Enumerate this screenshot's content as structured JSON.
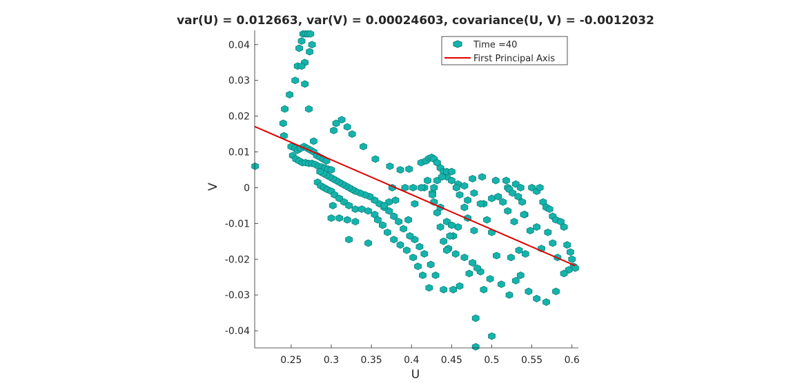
{
  "chart_data": {
    "type": "scatter",
    "title": "var(U) = 0.012663, var(V) = 0.00024603, covariance(U, V) = -0.0012032",
    "xlabel": "U",
    "ylabel": "V",
    "xlim": [
      0.2045,
      0.608
    ],
    "ylim": [
      -0.0448,
      0.044
    ],
    "xticks": [
      "0.25",
      "0.3",
      "0.35",
      "0.4",
      "0.45",
      "0.5",
      "0.55",
      "0.6"
    ],
    "yticks": [
      "0.04",
      "0.03",
      "0.02",
      "0.01",
      "0",
      "-0.01",
      "-0.02",
      "-0.03",
      "-0.04"
    ],
    "grid": false,
    "legend_position": "top-right",
    "colors": {
      "marker_fill": "#14b4ac",
      "marker_edge": "#0d7f7a",
      "line": "#e00000"
    },
    "series": [
      {
        "name": "Time =40",
        "kind": "scatter",
        "points": [
          [
            0.205,
            0.006
          ],
          [
            0.24,
            0.018
          ],
          [
            0.242,
            0.022
          ],
          [
            0.248,
            0.026
          ],
          [
            0.255,
            0.03
          ],
          [
            0.258,
            0.034
          ],
          [
            0.26,
            0.039
          ],
          [
            0.263,
            0.041
          ],
          [
            0.265,
            0.043
          ],
          [
            0.268,
            0.043
          ],
          [
            0.271,
            0.043
          ],
          [
            0.274,
            0.043
          ],
          [
            0.276,
            0.04
          ],
          [
            0.273,
            0.038
          ],
          [
            0.267,
            0.035
          ],
          [
            0.263,
            0.034
          ],
          [
            0.267,
            0.029
          ],
          [
            0.272,
            0.022
          ],
          [
            0.241,
            0.0145
          ],
          [
            0.278,
            0.013
          ],
          [
            0.25,
            0.0115
          ],
          [
            0.255,
            0.011
          ],
          [
            0.258,
            0.0105
          ],
          [
            0.262,
            0.011
          ],
          [
            0.266,
            0.0115
          ],
          [
            0.27,
            0.011
          ],
          [
            0.274,
            0.0105
          ],
          [
            0.278,
            0.01
          ],
          [
            0.282,
            0.009
          ],
          [
            0.286,
            0.0085
          ],
          [
            0.29,
            0.008
          ],
          [
            0.294,
            0.0075
          ],
          [
            0.252,
            0.009
          ],
          [
            0.256,
            0.008
          ],
          [
            0.26,
            0.0075
          ],
          [
            0.264,
            0.007
          ],
          [
            0.268,
            0.007
          ],
          [
            0.272,
            0.0068
          ],
          [
            0.276,
            0.0068
          ],
          [
            0.28,
            0.0065
          ],
          [
            0.284,
            0.006
          ],
          [
            0.288,
            0.0058
          ],
          [
            0.292,
            0.0055
          ],
          [
            0.296,
            0.0052
          ],
          [
            0.3,
            0.005
          ],
          [
            0.303,
            0.016
          ],
          [
            0.306,
            0.018
          ],
          [
            0.313,
            0.019
          ],
          [
            0.32,
            0.017
          ],
          [
            0.326,
            0.015
          ],
          [
            0.34,
            0.0115
          ],
          [
            0.355,
            0.008
          ],
          [
            0.373,
            0.006
          ],
          [
            0.386,
            0.005
          ],
          [
            0.397,
            0.0052
          ],
          [
            0.412,
            0.007
          ],
          [
            0.418,
            0.0075
          ],
          [
            0.422,
            0.0082
          ],
          [
            0.425,
            0.0085
          ],
          [
            0.428,
            0.008
          ],
          [
            0.432,
            0.007
          ],
          [
            0.436,
            0.0055
          ],
          [
            0.44,
            0.0045
          ],
          [
            0.444,
            0.003
          ],
          [
            0.45,
            0.002
          ],
          [
            0.458,
            0.001
          ],
          [
            0.466,
            0.0005
          ],
          [
            0.476,
            0.0025
          ],
          [
            0.488,
            0.003
          ],
          [
            0.505,
            0.002
          ],
          [
            0.518,
            0.002
          ],
          [
            0.52,
            0.0
          ],
          [
            0.522,
            -0.0005
          ],
          [
            0.526,
            -0.0015
          ],
          [
            0.53,
            0.001
          ],
          [
            0.533,
            -0.0025
          ],
          [
            0.536,
            0.0
          ],
          [
            0.538,
            -0.004
          ],
          [
            0.541,
            -0.0075
          ],
          [
            0.55,
            0.0
          ],
          [
            0.556,
            -0.001
          ],
          [
            0.56,
            0.0
          ],
          [
            0.564,
            -0.004
          ],
          [
            0.568,
            -0.0055
          ],
          [
            0.572,
            -0.006
          ],
          [
            0.576,
            -0.008
          ],
          [
            0.58,
            -0.009
          ],
          [
            0.586,
            -0.0095
          ],
          [
            0.59,
            -0.011
          ],
          [
            0.594,
            -0.016
          ],
          [
            0.598,
            -0.018
          ],
          [
            0.6,
            -0.02
          ],
          [
            0.602,
            -0.022
          ],
          [
            0.604,
            -0.0225
          ],
          [
            0.596,
            -0.023
          ],
          [
            0.59,
            -0.024
          ],
          [
            0.58,
            -0.029
          ],
          [
            0.568,
            -0.032
          ],
          [
            0.556,
            -0.031
          ],
          [
            0.546,
            -0.029
          ],
          [
            0.536,
            -0.0245
          ],
          [
            0.53,
            -0.026
          ],
          [
            0.522,
            -0.03
          ],
          [
            0.512,
            -0.027
          ],
          [
            0.498,
            -0.0255
          ],
          [
            0.486,
            -0.0235
          ],
          [
            0.476,
            -0.021
          ],
          [
            0.466,
            -0.0195
          ],
          [
            0.455,
            -0.0185
          ],
          [
            0.446,
            -0.017
          ],
          [
            0.44,
            -0.015
          ],
          [
            0.436,
            -0.011
          ],
          [
            0.432,
            -0.007
          ],
          [
            0.428,
            -0.004
          ],
          [
            0.426,
            -0.0015
          ],
          [
            0.428,
            0.0
          ],
          [
            0.432,
            0.002
          ],
          [
            0.438,
            0.003
          ],
          [
            0.444,
            0.0045
          ],
          [
            0.45,
            0.0045
          ],
          [
            0.456,
            0.0
          ],
          [
            0.46,
            -0.002
          ],
          [
            0.47,
            -0.0085
          ],
          [
            0.478,
            -0.012
          ],
          [
            0.49,
            -0.0045
          ],
          [
            0.5,
            -0.003
          ],
          [
            0.508,
            -0.0025
          ],
          [
            0.514,
            -0.004
          ],
          [
            0.52,
            -0.0065
          ],
          [
            0.528,
            -0.0095
          ],
          [
            0.54,
            -0.0075
          ],
          [
            0.548,
            -0.012
          ],
          [
            0.556,
            -0.011
          ],
          [
            0.562,
            -0.017
          ],
          [
            0.57,
            -0.0125
          ],
          [
            0.576,
            -0.0155
          ],
          [
            0.582,
            -0.0195
          ],
          [
            0.542,
            -0.0185
          ],
          [
            0.534,
            -0.0175
          ],
          [
            0.524,
            -0.0195
          ],
          [
            0.506,
            -0.019
          ],
          [
            0.5,
            -0.0125
          ],
          [
            0.494,
            -0.009
          ],
          [
            0.486,
            -0.0045
          ],
          [
            0.478,
            -0.0015
          ],
          [
            0.47,
            -0.0035
          ],
          [
            0.466,
            -0.0055
          ],
          [
            0.458,
            -0.011
          ],
          [
            0.452,
            -0.0135
          ],
          [
            0.448,
            -0.0135
          ],
          [
            0.444,
            -0.0175
          ],
          [
            0.44,
            -0.0285
          ],
          [
            0.452,
            -0.0285
          ],
          [
            0.46,
            -0.0275
          ],
          [
            0.472,
            -0.024
          ],
          [
            0.482,
            -0.0225
          ],
          [
            0.49,
            -0.0285
          ],
          [
            0.48,
            -0.0365
          ],
          [
            0.48,
            -0.0445
          ],
          [
            0.5,
            -0.0415
          ],
          [
            0.43,
            -0.0245
          ],
          [
            0.424,
            -0.0215
          ],
          [
            0.416,
            -0.0185
          ],
          [
            0.41,
            -0.0165
          ],
          [
            0.404,
            -0.0145
          ],
          [
            0.398,
            -0.0135
          ],
          [
            0.39,
            -0.0115
          ],
          [
            0.384,
            -0.0095
          ],
          [
            0.378,
            -0.008
          ],
          [
            0.372,
            -0.0065
          ],
          [
            0.366,
            -0.0055
          ],
          [
            0.36,
            -0.0045
          ],
          [
            0.354,
            -0.0035
          ],
          [
            0.348,
            -0.0025
          ],
          [
            0.342,
            -0.002
          ],
          [
            0.336,
            -0.0015
          ],
          [
            0.33,
            -0.001
          ],
          [
            0.326,
            -0.0005
          ],
          [
            0.322,
            0.0
          ],
          [
            0.318,
            0.0005
          ],
          [
            0.314,
            0.001
          ],
          [
            0.31,
            0.0015
          ],
          [
            0.306,
            0.002
          ],
          [
            0.302,
            0.0025
          ],
          [
            0.298,
            0.003
          ],
          [
            0.294,
            0.0035
          ],
          [
            0.29,
            0.004
          ],
          [
            0.286,
            0.0045
          ],
          [
            0.283,
            0.0015
          ],
          [
            0.287,
            0.0005
          ],
          [
            0.291,
            0.0
          ],
          [
            0.295,
            -0.0005
          ],
          [
            0.3,
            -0.001
          ],
          [
            0.304,
            -0.002
          ],
          [
            0.31,
            -0.003
          ],
          [
            0.316,
            -0.004
          ],
          [
            0.322,
            -0.005
          ],
          [
            0.33,
            -0.006
          ],
          [
            0.338,
            -0.006
          ],
          [
            0.346,
            -0.0065
          ],
          [
            0.354,
            -0.0075
          ],
          [
            0.358,
            -0.009
          ],
          [
            0.364,
            -0.0105
          ],
          [
            0.37,
            -0.0125
          ],
          [
            0.378,
            -0.0145
          ],
          [
            0.386,
            -0.016
          ],
          [
            0.394,
            -0.0175
          ],
          [
            0.402,
            -0.0195
          ],
          [
            0.408,
            -0.022
          ],
          [
            0.414,
            -0.0245
          ],
          [
            0.422,
            -0.028
          ],
          [
            0.302,
            -0.005
          ],
          [
            0.31,
            -0.0085
          ],
          [
            0.32,
            -0.009
          ],
          [
            0.33,
            -0.0095
          ],
          [
            0.346,
            -0.0155
          ],
          [
            0.322,
            -0.0145
          ],
          [
            0.3,
            -0.0085
          ],
          [
            0.38,
            -0.0035
          ],
          [
            0.372,
            -0.004
          ],
          [
            0.366,
            -0.005
          ],
          [
            0.376,
            0.0
          ],
          [
            0.392,
            0.0
          ],
          [
            0.402,
            0.0
          ],
          [
            0.416,
            0.0
          ],
          [
            0.426,
            -0.002
          ],
          [
            0.436,
            -0.0055
          ],
          [
            0.444,
            -0.0095
          ],
          [
            0.45,
            -0.0105
          ],
          [
            0.396,
            -0.009
          ],
          [
            0.404,
            -0.0045
          ],
          [
            0.412,
            0.0
          ],
          [
            0.42,
            0.002
          ]
        ]
      },
      {
        "name": "First Principal Axis",
        "kind": "line",
        "points": [
          [
            0.2045,
            0.0171
          ],
          [
            0.604,
            -0.0218
          ]
        ]
      }
    ]
  }
}
